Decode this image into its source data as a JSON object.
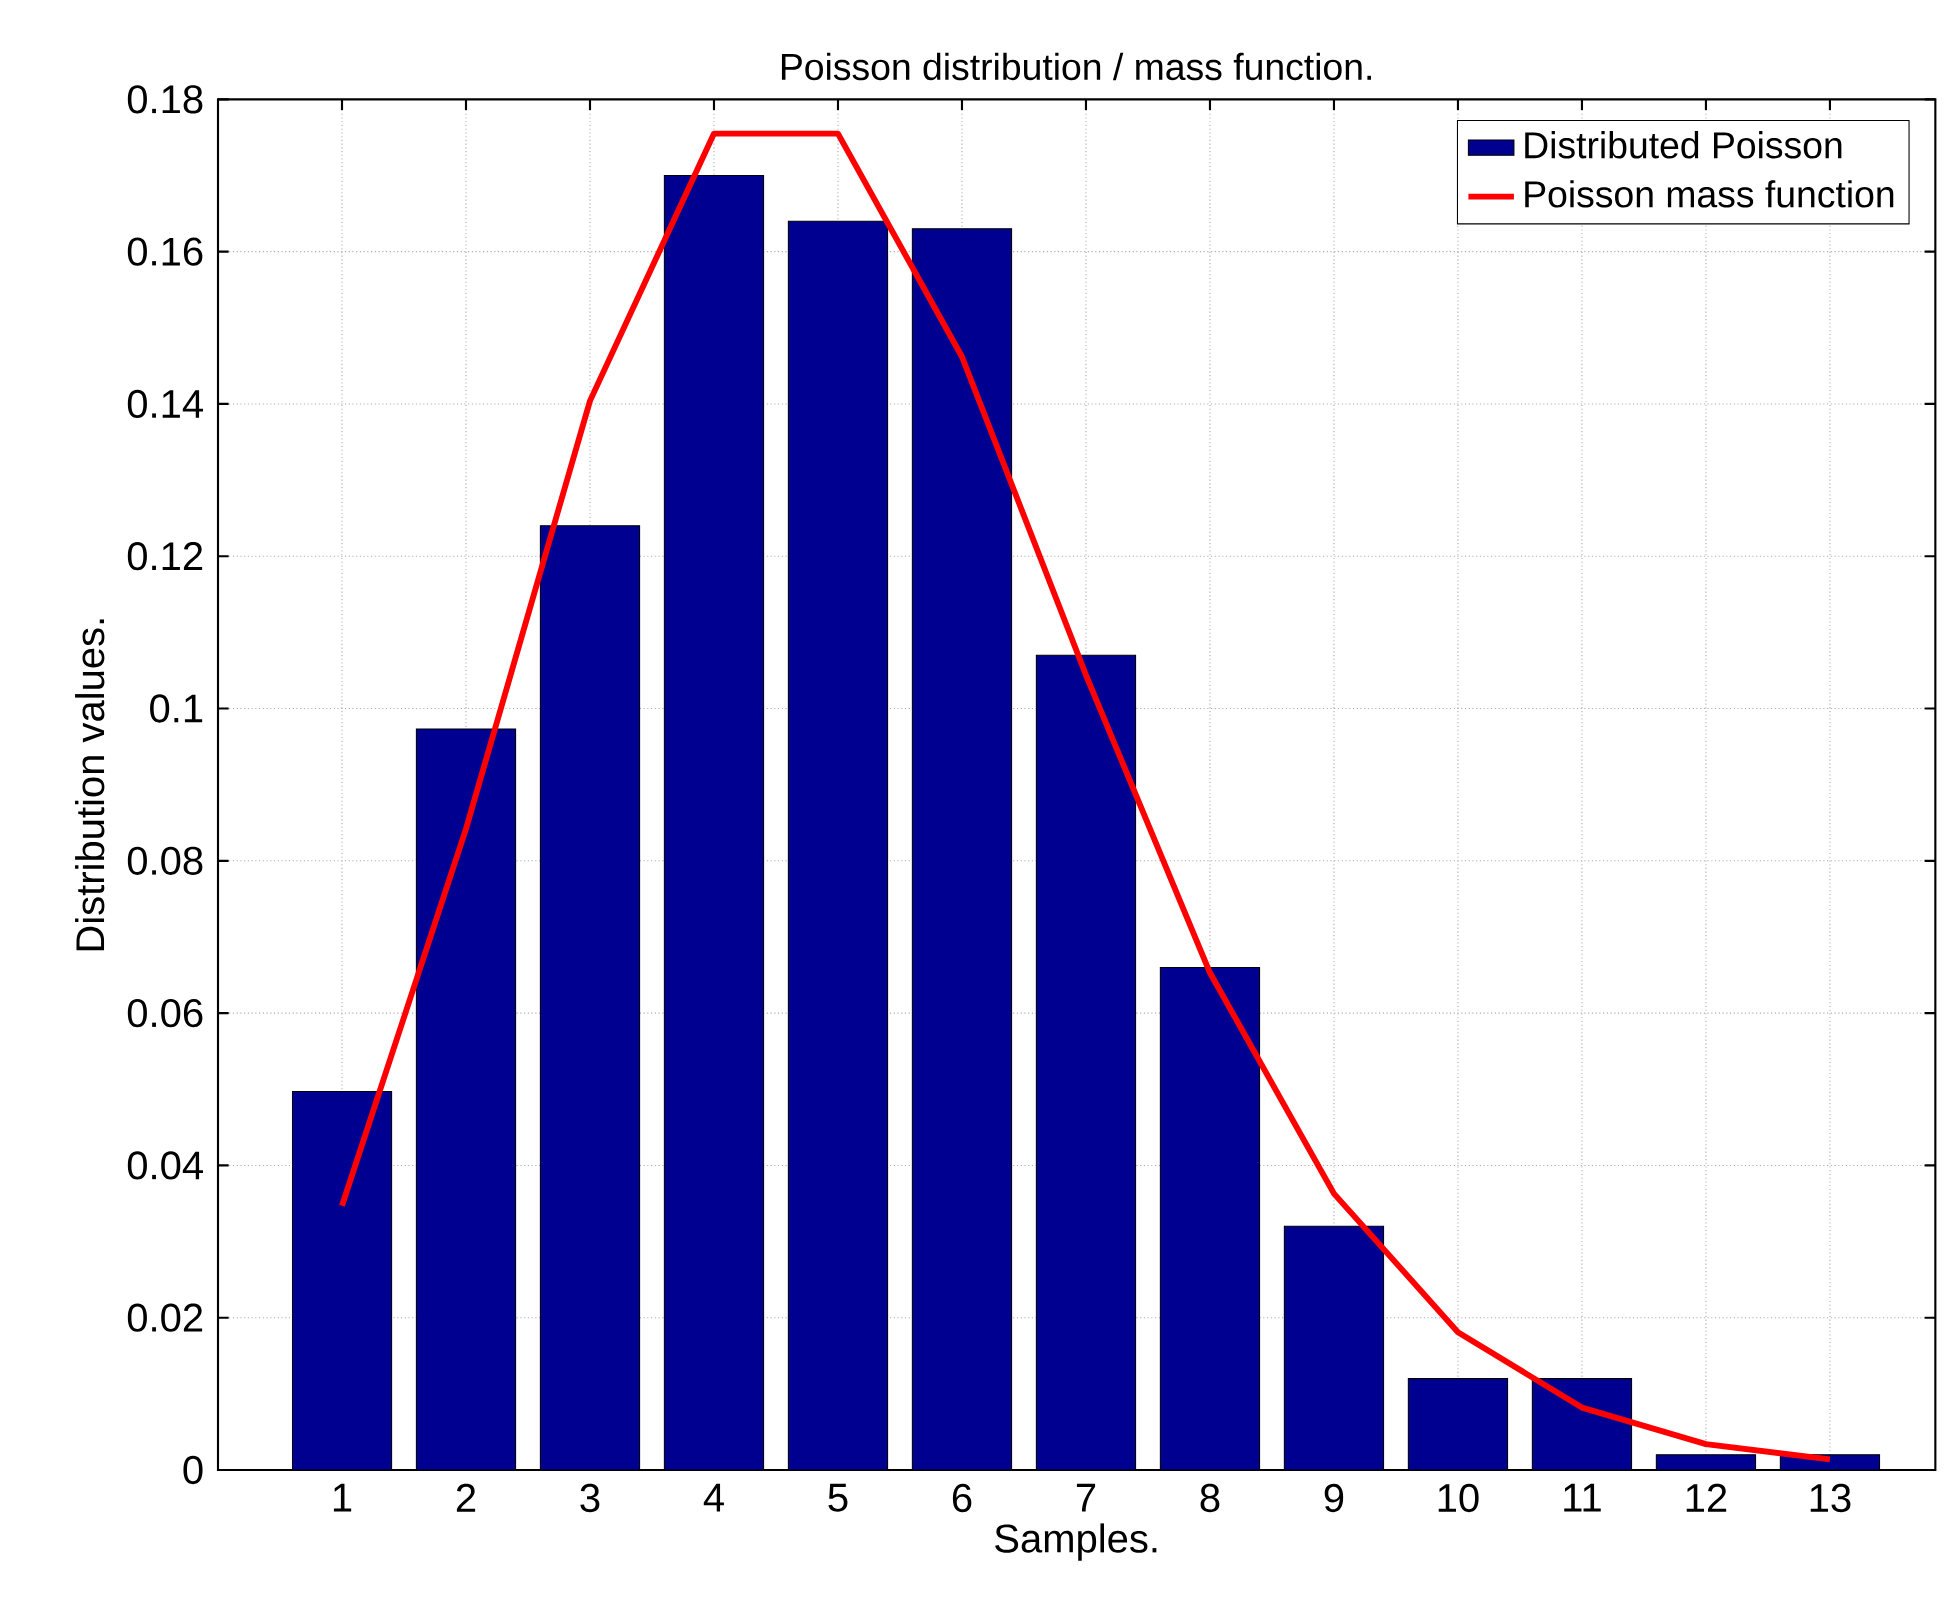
{
  "chart_data": {
    "type": "bar",
    "title": "Poisson distribution / mass function.",
    "xlabel": "Samples.",
    "ylabel": "Distribution values.",
    "x": [
      1,
      2,
      3,
      4,
      5,
      6,
      7,
      8,
      9,
      10,
      11,
      12,
      13
    ],
    "series": [
      {
        "name": "Distributed Poisson",
        "color": "#000090",
        "values": [
          0.0497,
          0.0973,
          0.124,
          0.17,
          0.164,
          0.163,
          0.107,
          0.066,
          0.032,
          0.012,
          0.012,
          0.002,
          0.002
        ]
      },
      {
        "name": "Poisson mass function",
        "type": "line",
        "color": "#ff0000",
        "values": [
          0.0347,
          0.0842,
          0.1404,
          0.1755,
          0.1755,
          0.1462,
          0.1044,
          0.0653,
          0.0363,
          0.0181,
          0.0082,
          0.0034,
          0.0014
        ]
      }
    ],
    "xlim": [
      0,
      13.85
    ],
    "xticks": [
      1,
      2,
      3,
      4,
      5,
      6,
      7,
      8,
      9,
      10,
      11,
      12,
      13
    ],
    "ylim": [
      0,
      0.18
    ],
    "yticks": [
      0,
      0.02,
      0.04,
      0.06,
      0.08,
      0.1,
      0.12,
      0.14,
      0.16,
      0.18
    ],
    "grid": true,
    "legend": "top right",
    "marker": "none",
    "line_style": "solid"
  }
}
